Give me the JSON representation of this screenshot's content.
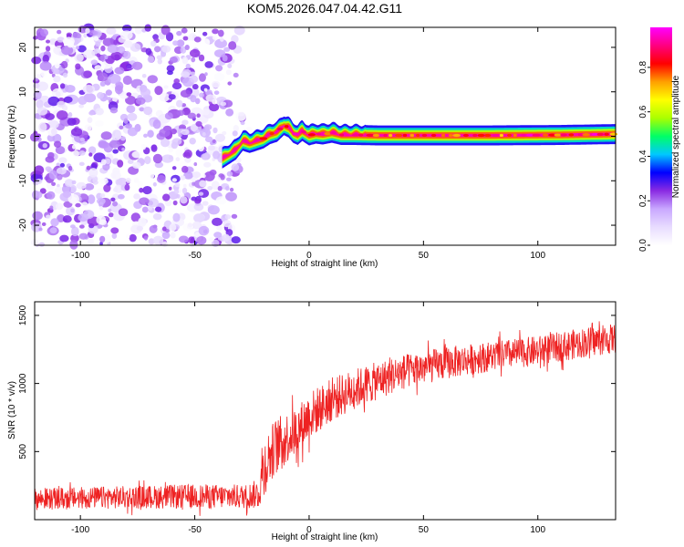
{
  "figure": {
    "title": "KOM5.2026.047.04.42.G11"
  },
  "chart_data": [
    {
      "type": "heatmap",
      "name": "spectrogram",
      "xlabel": "Height of straight line (km)",
      "ylabel": "Frequency (Hz)",
      "xlim": [
        -120,
        134
      ],
      "ylim": [
        -24.5,
        24.5
      ],
      "xticks": [
        -100,
        -50,
        0,
        50,
        100
      ],
      "xtick_labels": [
        "-100",
        "-50",
        "0",
        "50",
        "100"
      ],
      "yticks": [
        -20,
        -10,
        0,
        10,
        20
      ],
      "ytick_labels": [
        "-20",
        "-10",
        "0",
        "10",
        "20"
      ],
      "colorbar": {
        "label": "Normalized spectral amplitude",
        "range": [
          0,
          0.98
        ],
        "ticks": [
          0.0,
          0.2,
          0.4,
          0.6,
          0.8
        ],
        "tick_labels": [
          "0.0",
          "0.2",
          "0.4",
          "0.6",
          "0.8"
        ],
        "colormap": [
          "#ffffff",
          "#e8dcff",
          "#c9a8ff",
          "#8a2be2",
          "#0000ff",
          "#00c8ff",
          "#00ff66",
          "#aaff00",
          "#ffff00",
          "#ffa000",
          "#ff0000",
          "#ff0080",
          "#ff00ff"
        ]
      },
      "noise_region_x": [
        -120,
        -26
      ],
      "noise_amplitude_range": [
        0.0,
        0.25
      ],
      "signal_ridge": {
        "x": [
          -38,
          -35,
          -32,
          -29,
          -26,
          -23,
          -20,
          -17,
          -14,
          -11,
          -9,
          -7,
          -5,
          -3,
          0,
          3,
          6,
          10,
          14,
          20,
          30,
          50,
          80,
          110,
          134
        ],
        "freq_hz": [
          -5,
          -4,
          -3,
          -1,
          -1.5,
          -1,
          -0.5,
          0.5,
          1,
          2.5,
          2,
          0.8,
          0.3,
          1.2,
          0.2,
          0.6,
          0.4,
          0.8,
          0.3,
          0.3,
          0.2,
          0.2,
          0.2,
          0.3,
          0.5
        ],
        "peak_amplitude": 0.95
      }
    },
    {
      "type": "line",
      "name": "snr",
      "xlabel": "Height of straight line (km)",
      "ylabel": "SNR (10 * v/v)",
      "xlim": [
        -120,
        134
      ],
      "ylim": [
        0,
        1600
      ],
      "xticks": [
        -100,
        -50,
        0,
        50,
        100
      ],
      "xtick_labels": [
        "-100",
        "-50",
        "0",
        "50",
        "100"
      ],
      "yticks": [
        500,
        1000,
        1500
      ],
      "ytick_labels": [
        "500",
        "1000",
        "1500"
      ],
      "color": "#ee2222",
      "trend": {
        "x": [
          -120,
          -100,
          -50,
          -28,
          -22,
          -20,
          -15,
          -10,
          -5,
          0,
          10,
          20,
          40,
          60,
          80,
          100,
          120,
          134
        ],
        "y": [
          150,
          160,
          170,
          170,
          190,
          380,
          540,
          600,
          660,
          760,
          880,
          960,
          1080,
          1150,
          1200,
          1240,
          1300,
          1330
        ]
      },
      "noise_amplitude": [
        80,
        80,
        90,
        90,
        110,
        220,
        200,
        190,
        180,
        180,
        160,
        150,
        130,
        120,
        110,
        110,
        110,
        110
      ]
    }
  ]
}
